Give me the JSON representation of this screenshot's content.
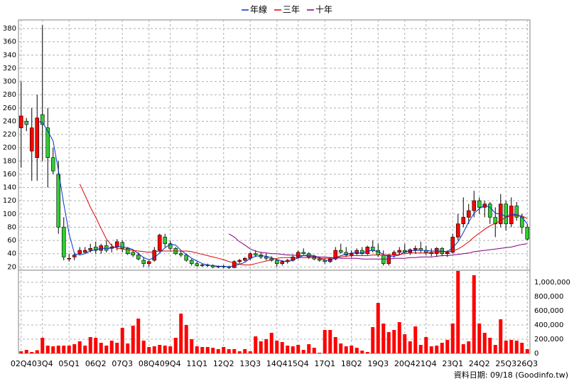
{
  "chart_data": [
    {
      "type": "candlestick",
      "categories": [
        "02Q4",
        null,
        null,
        null,
        "03Q4",
        null,
        null,
        null,
        null,
        "05Q1",
        null,
        null,
        null,
        null,
        "06Q2",
        null,
        null,
        null,
        null,
        "07Q3",
        null,
        null,
        null,
        null,
        "08Q4",
        null,
        null,
        null,
        "09Q4",
        null,
        null,
        null,
        null,
        "11Q1",
        null,
        null,
        null,
        null,
        "12Q2",
        null,
        null,
        null,
        null,
        "13Q3",
        null,
        null,
        null,
        null,
        "14Q4",
        null,
        null,
        null,
        "15Q4",
        null,
        null,
        null,
        null,
        "17Q1",
        null,
        null,
        null,
        null,
        "18Q2",
        null,
        null,
        null,
        null,
        "19Q3",
        null,
        null,
        null,
        null,
        "20Q4",
        null,
        null,
        null,
        "21Q4",
        null,
        null,
        null,
        null,
        "23Q1",
        null,
        null,
        null,
        null,
        "24Q2",
        null,
        null,
        null,
        null,
        "25Q3",
        null,
        null,
        null,
        "26Q3"
      ],
      "open": [
        230,
        240,
        195,
        185,
        250,
        230,
        185,
        160,
        80,
        33,
        35,
        40,
        42,
        45,
        50,
        45,
        52,
        48,
        50,
        57,
        48,
        42,
        38,
        30,
        25,
        30,
        45,
        65,
        55,
        48,
        40,
        38,
        30,
        25,
        22,
        23,
        22,
        20,
        21,
        20,
        19,
        28,
        30,
        33,
        40,
        38,
        35,
        33,
        30,
        25,
        28,
        30,
        35,
        42,
        40,
        35,
        32,
        30,
        28,
        32,
        45,
        42,
        38,
        40,
        45,
        40,
        50,
        45,
        38,
        25,
        38,
        42,
        45,
        42,
        46,
        48,
        45,
        42,
        40,
        48,
        40,
        42,
        65,
        85,
        95,
        105,
        120,
        110,
        115,
        95,
        85,
        115,
        85,
        112,
        95,
        80
      ],
      "high": [
        300,
        245,
        260,
        280,
        385,
        260,
        200,
        180,
        95,
        40,
        42,
        50,
        50,
        55,
        58,
        55,
        60,
        55,
        62,
        60,
        50,
        45,
        42,
        35,
        30,
        50,
        70,
        70,
        60,
        50,
        45,
        40,
        32,
        28,
        25,
        25,
        24,
        22,
        23,
        22,
        30,
        32,
        35,
        42,
        45,
        42,
        40,
        36,
        32,
        30,
        32,
        38,
        45,
        48,
        42,
        38,
        35,
        33,
        35,
        50,
        55,
        50,
        45,
        48,
        50,
        52,
        60,
        55,
        45,
        40,
        45,
        50,
        55,
        48,
        52,
        58,
        52,
        48,
        50,
        50,
        45,
        70,
        100,
        125,
        115,
        135,
        125,
        120,
        118,
        110,
        130,
        120,
        125,
        118,
        100,
        85
      ],
      "low": [
        170,
        225,
        150,
        150,
        180,
        140,
        160,
        70,
        30,
        28,
        30,
        38,
        40,
        42,
        40,
        40,
        42,
        42,
        45,
        42,
        38,
        35,
        30,
        20,
        20,
        28,
        42,
        50,
        45,
        38,
        35,
        28,
        22,
        20,
        20,
        20,
        18,
        18,
        18,
        17,
        18,
        25,
        28,
        30,
        35,
        32,
        30,
        28,
        20,
        22,
        25,
        28,
        32,
        38,
        32,
        30,
        28,
        25,
        26,
        30,
        40,
        35,
        34,
        38,
        38,
        38,
        42,
        35,
        22,
        22,
        34,
        38,
        40,
        38,
        40,
        42,
        38,
        36,
        35,
        36,
        35,
        40,
        60,
        80,
        85,
        95,
        100,
        95,
        85,
        65,
        80,
        75,
        80,
        90,
        70,
        60
      ],
      "close": [
        248,
        235,
        230,
        245,
        235,
        185,
        165,
        80,
        35,
        33,
        38,
        45,
        45,
        48,
        45,
        52,
        45,
        50,
        58,
        48,
        40,
        38,
        32,
        25,
        28,
        45,
        68,
        55,
        48,
        40,
        38,
        30,
        25,
        22,
        23,
        22,
        20,
        21,
        20,
        19,
        28,
        30,
        33,
        40,
        38,
        35,
        33,
        30,
        25,
        28,
        30,
        35,
        42,
        40,
        35,
        32,
        30,
        28,
        32,
        45,
        42,
        38,
        40,
        45,
        40,
        50,
        45,
        38,
        25,
        38,
        42,
        45,
        42,
        46,
        48,
        45,
        42,
        40,
        48,
        40,
        42,
        65,
        85,
        95,
        105,
        120,
        110,
        115,
        95,
        85,
        115,
        85,
        112,
        95,
        80,
        62
      ],
      "up_color": "#ff0000",
      "down_color": "#33cc33",
      "series": [
        {
          "name": "年線",
          "color": "#0033cc",
          "values": [
            null,
            null,
            null,
            240,
            238,
            225,
            210,
            165,
            115,
            70,
            40,
            38,
            40,
            44,
            46,
            48,
            48,
            48,
            51,
            50,
            49,
            46,
            40,
            34,
            31,
            34,
            41,
            49,
            54,
            53,
            45,
            39,
            33,
            29,
            25,
            23,
            22,
            21,
            21,
            20,
            22,
            24,
            27,
            33,
            36,
            37,
            36,
            34,
            31,
            29,
            28,
            30,
            34,
            37,
            38,
            37,
            34,
            30,
            30,
            34,
            37,
            39,
            41,
            41,
            41,
            44,
            45,
            43,
            39,
            36,
            36,
            38,
            43,
            44,
            45,
            45,
            45,
            44,
            44,
            44,
            43,
            49,
            58,
            72,
            88,
            101,
            108,
            113,
            110,
            101,
            100,
            96,
            99,
            99,
            95,
            85
          ]
        },
        {
          "name": "三年",
          "color": "#e00000",
          "values": [
            null,
            null,
            null,
            null,
            null,
            null,
            null,
            null,
            null,
            null,
            null,
            145,
            128,
            110,
            95,
            78,
            62,
            52,
            48,
            47,
            46,
            45,
            44,
            43,
            42,
            43,
            44,
            44,
            44,
            44,
            44,
            44,
            43,
            41,
            39,
            37,
            35,
            33,
            31,
            28,
            26,
            24,
            23,
            23,
            25,
            27,
            29,
            31,
            33,
            34,
            34,
            34,
            34,
            34,
            34,
            34,
            33,
            33,
            33,
            34,
            35,
            36,
            37,
            37,
            37,
            37,
            38,
            38,
            38,
            38,
            38,
            39,
            40,
            41,
            41,
            41,
            41,
            41,
            42,
            43,
            43,
            44,
            47,
            52,
            58,
            65,
            71,
            77,
            82,
            86,
            90,
            95,
            97,
            98,
            97,
            93
          ]
        },
        {
          "name": "十年",
          "color": "#800080",
          "values": [
            null,
            null,
            null,
            null,
            null,
            null,
            null,
            null,
            null,
            null,
            null,
            null,
            null,
            null,
            null,
            null,
            null,
            null,
            null,
            null,
            null,
            null,
            null,
            null,
            null,
            null,
            null,
            null,
            null,
            null,
            null,
            null,
            null,
            null,
            null,
            null,
            null,
            null,
            null,
            70,
            65,
            58,
            53,
            47,
            44,
            42,
            41,
            40,
            40,
            39,
            38,
            38,
            37,
            37,
            36,
            36,
            35,
            35,
            34,
            34,
            33,
            33,
            33,
            33,
            32,
            32,
            32,
            32,
            32,
            32,
            33,
            33,
            33,
            34,
            34,
            35,
            35,
            35,
            36,
            37,
            37,
            38,
            39,
            40,
            41,
            43,
            44,
            45,
            46,
            47,
            48,
            49,
            50,
            52,
            54,
            55
          ]
        }
      ],
      "ylim": [
        15,
        393
      ],
      "yticks": [
        20,
        40,
        60,
        80,
        100,
        120,
        140,
        160,
        180,
        200,
        220,
        240,
        260,
        280,
        300,
        320,
        340,
        360,
        380
      ],
      "grid": true,
      "footnote": "資料日期: 09/18  (Goodinfo.tw)"
    },
    {
      "type": "bar",
      "color": "#ff0000",
      "values": [
        30000,
        50000,
        20000,
        45000,
        220000,
        110000,
        100000,
        110000,
        110000,
        110000,
        130000,
        170000,
        110000,
        230000,
        220000,
        150000,
        110000,
        180000,
        150000,
        360000,
        140000,
        390000,
        490000,
        180000,
        90000,
        100000,
        120000,
        110000,
        100000,
        220000,
        560000,
        400000,
        200000,
        100000,
        90000,
        90000,
        80000,
        60000,
        90000,
        60000,
        60000,
        30000,
        60000,
        30000,
        240000,
        170000,
        200000,
        290000,
        180000,
        160000,
        110000,
        100000,
        120000,
        50000,
        130000,
        80000,
        10000,
        330000,
        330000,
        230000,
        140000,
        100000,
        110000,
        80000,
        40000,
        20000,
        370000,
        710000,
        420000,
        300000,
        330000,
        440000,
        270000,
        170000,
        380000,
        120000,
        230000,
        100000,
        110000,
        150000,
        190000,
        420000,
        1160000,
        130000,
        170000,
        1100000,
        420000,
        290000,
        220000,
        120000,
        480000,
        180000,
        190000,
        180000,
        150000,
        60000
      ],
      "ylim": [
        0,
        1170000
      ],
      "yticks": [
        0,
        {
          "value": 200000,
          "label": "200,000"
        },
        {
          "value": 400000,
          "label": "400,000"
        },
        {
          "value": 600000,
          "label": "600,000"
        },
        {
          "value": 800000,
          "label": "800,000"
        },
        {
          "value": 1000000,
          "label": "1,000,000"
        }
      ],
      "grid": true
    }
  ]
}
